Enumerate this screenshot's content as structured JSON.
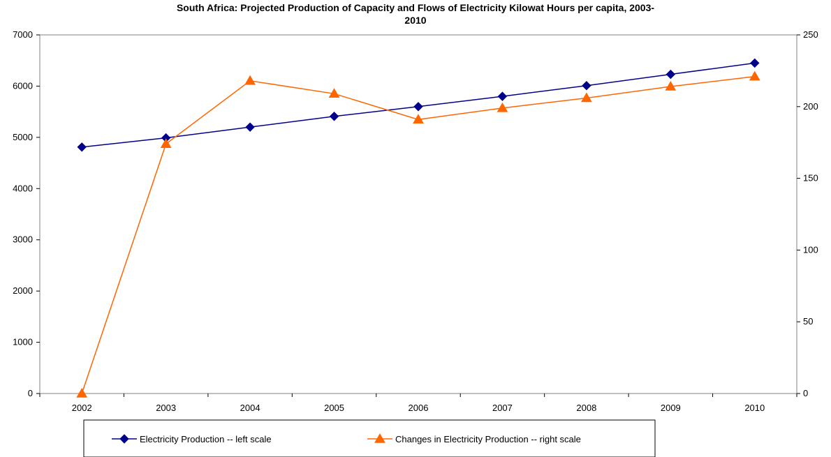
{
  "chart_data": {
    "type": "line",
    "title_line1": "South Africa: Projected Production of Capacity and Flows of Electricity Kilowat Hours per capita, 2003-",
    "title_line2": "2010",
    "categories": [
      "2002",
      "2003",
      "2004",
      "2005",
      "2006",
      "2007",
      "2008",
      "2009",
      "2010"
    ],
    "y_left": {
      "ylim": [
        0,
        7000
      ],
      "ticks": [
        0,
        1000,
        2000,
        3000,
        4000,
        5000,
        6000,
        7000
      ]
    },
    "y_right": {
      "ylim": [
        0,
        250
      ],
      "ticks": [
        0,
        50,
        100,
        150,
        200,
        250
      ]
    },
    "grid": false,
    "legend_position": "bottom",
    "series": [
      {
        "name": "Electricity Production -- left scale",
        "axis": "left",
        "color": "#00008B",
        "marker": "diamond",
        "values": [
          4810,
          4990,
          5200,
          5410,
          5600,
          5800,
          6010,
          6230,
          6450
        ]
      },
      {
        "name": "Changes in Electricity Production -- right scale",
        "axis": "right",
        "color": "#FF6600",
        "marker": "triangle",
        "values": [
          0,
          174,
          218,
          209,
          191,
          199,
          206,
          214,
          221
        ]
      }
    ]
  }
}
